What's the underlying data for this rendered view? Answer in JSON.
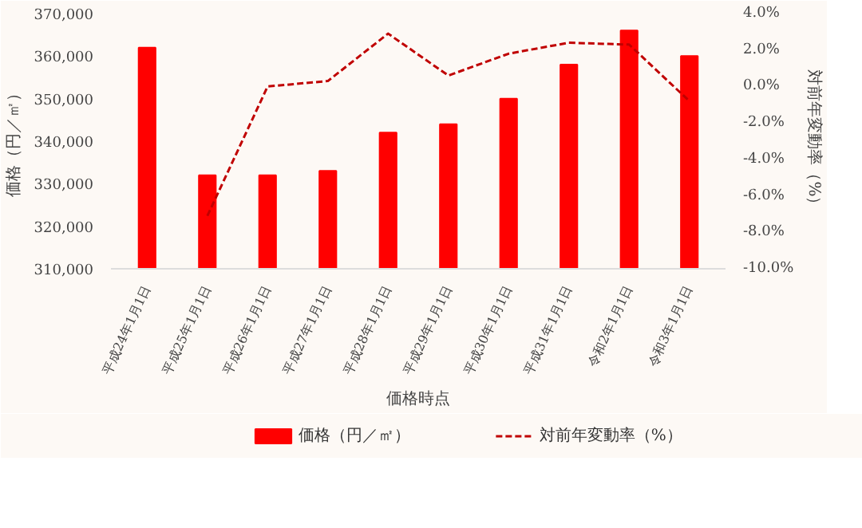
{
  "chart_data": {
    "type": "bar",
    "xlabel": "価格時点",
    "ylabel": "価格（円／㎡）",
    "y2label": "対前年変動率（%）",
    "categories": [
      "平成24年1月1日",
      "平成25年1月1日",
      "平成26年1月1日",
      "平成27年1月1日",
      "平成28年1月1日",
      "平成29年1月1日",
      "平成30年1月1日",
      "平成31年1月1日",
      "令和2年1月1日",
      "令和3年1月1日"
    ],
    "series": [
      {
        "name": "価格（円／㎡）",
        "color": "#ff0000",
        "values": [
          362000,
          332000,
          332000,
          333000,
          342000,
          344000,
          350000,
          358000,
          366000,
          360000
        ]
      },
      {
        "name": "対前年変動率（%）",
        "type": "line",
        "axis": "y2",
        "color": "#c00000",
        "line_style": "dashed",
        "values": [
          null,
          -7.1,
          0.0,
          0.3,
          2.9,
          0.6,
          1.8,
          2.4,
          2.3,
          -0.8
        ]
      }
    ],
    "ylim": [
      310000,
      370000
    ],
    "yticks": [
      {
        "value": 310000,
        "label": "310,000"
      },
      {
        "value": 320000,
        "label": "320,000"
      },
      {
        "value": 330000,
        "label": "330,000"
      },
      {
        "value": 340000,
        "label": "340,000"
      },
      {
        "value": 350000,
        "label": "350,000"
      },
      {
        "value": 360000,
        "label": "360,000"
      },
      {
        "value": 370000,
        "label": "370,000"
      }
    ],
    "y2lim": [
      -10,
      4
    ],
    "y2ticks": [
      {
        "value": -10,
        "label": "-10.0%"
      },
      {
        "value": -8,
        "label": "-8.0%"
      },
      {
        "value": -6,
        "label": "-6.0%"
      },
      {
        "value": -4,
        "label": "-4.0%"
      },
      {
        "value": -2,
        "label": "-2.0%"
      },
      {
        "value": 0,
        "label": "0.0%"
      },
      {
        "value": 2,
        "label": "2.0%"
      },
      {
        "value": 4,
        "label": "4.0%"
      }
    ],
    "legend": "bottom",
    "grid": false
  }
}
